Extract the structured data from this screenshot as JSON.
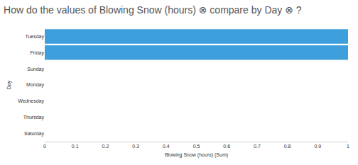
{
  "chart_data": {
    "type": "bar",
    "title": "How do the values of Blowing Snow (hours) ⊗ compare by Day ⊗ ?",
    "orientation": "horizontal",
    "categories": [
      "Tuesday",
      "Friday",
      "Sunday",
      "Monday",
      "Wednesday",
      "Thursday",
      "Saturday"
    ],
    "values": [
      1,
      1,
      0,
      0,
      0,
      0,
      0
    ],
    "color": "#3d9fdb",
    "xlabel": "Blowing Snow (hours) (Sum)",
    "ylabel": "Day",
    "xlim": [
      0,
      1
    ],
    "xticks": [
      0,
      0.1,
      0.2,
      0.3,
      0.4,
      0.5,
      0.6,
      0.7,
      0.8,
      0.9,
      1
    ],
    "grid": false
  }
}
